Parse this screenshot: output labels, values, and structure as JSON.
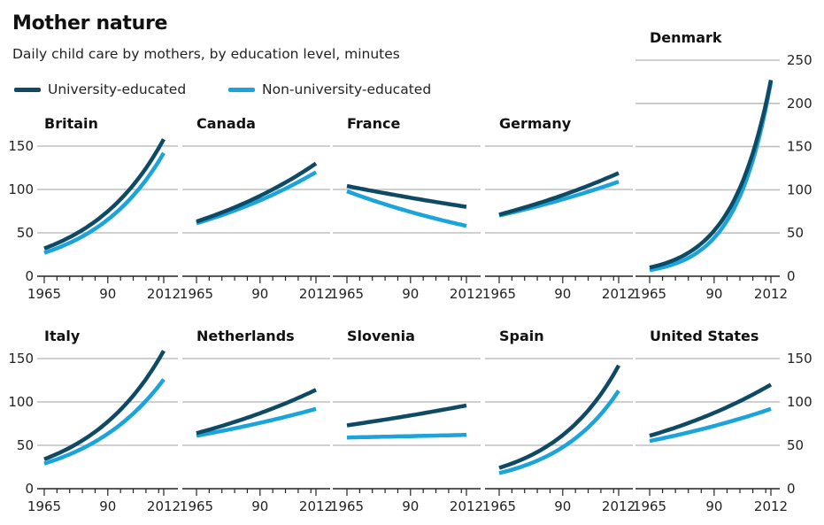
{
  "title": "Mother nature",
  "subtitle": "Daily child care by mothers, by education level, minutes",
  "colors": {
    "university": "#0e4a64",
    "non_university": "#1aa4d9",
    "grid": "#c0c0c0",
    "axis": "#222222"
  },
  "legend": [
    {
      "label": "University-educated",
      "color": "#0e4a64"
    },
    {
      "label": "Non-university-educated",
      "color": "#1aa4d9"
    }
  ],
  "chart_data": [
    {
      "type": "line",
      "title": "Britain",
      "x": [
        1965,
        2012
      ],
      "xticks": [
        "1965",
        "90",
        "2012"
      ],
      "ylim": [
        0,
        150
      ],
      "yticks": [
        "0",
        "50",
        "100",
        "150"
      ],
      "series": [
        {
          "name": "University-educated",
          "start": 32,
          "end": 158
        },
        {
          "name": "Non-university-educated",
          "start": 27,
          "end": 142
        }
      ]
    },
    {
      "type": "line",
      "title": "Canada",
      "x": [
        1965,
        2012
      ],
      "xticks": [
        "1965",
        "90",
        "2012"
      ],
      "ylim": [
        0,
        150
      ],
      "series": [
        {
          "name": "University-educated",
          "start": 63,
          "end": 130
        },
        {
          "name": "Non-university-educated",
          "start": 61,
          "end": 120
        }
      ]
    },
    {
      "type": "line",
      "title": "France",
      "x": [
        1965,
        2012
      ],
      "xticks": [
        "1965",
        "90",
        "2012"
      ],
      "ylim": [
        0,
        150
      ],
      "series": [
        {
          "name": "University-educated",
          "start": 104,
          "end": 80
        },
        {
          "name": "Non-university-educated",
          "start": 98,
          "end": 58
        }
      ]
    },
    {
      "type": "line",
      "title": "Germany",
      "x": [
        1965,
        2012
      ],
      "xticks": [
        "1965",
        "90",
        "2012"
      ],
      "ylim": [
        0,
        150
      ],
      "series": [
        {
          "name": "University-educated",
          "start": 71,
          "end": 119
        },
        {
          "name": "Non-university-educated",
          "start": 70,
          "end": 109
        }
      ]
    },
    {
      "type": "line",
      "title": "Denmark",
      "x": [
        1965,
        2012
      ],
      "xticks": [
        "1965",
        "90",
        "2012"
      ],
      "ylim": [
        0,
        250
      ],
      "yticks": [
        "0",
        "50",
        "100",
        "150",
        "200",
        "250"
      ],
      "series": [
        {
          "name": "University-educated",
          "start": 10,
          "end": 227
        },
        {
          "name": "Non-university-educated",
          "start": 7,
          "end": 225
        }
      ]
    },
    {
      "type": "line",
      "title": "Italy",
      "x": [
        1965,
        2012
      ],
      "xticks": [
        "1965",
        "90",
        "2012"
      ],
      "ylim": [
        0,
        150
      ],
      "yticks": [
        "0",
        "50",
        "100",
        "150"
      ],
      "series": [
        {
          "name": "University-educated",
          "start": 34,
          "end": 159
        },
        {
          "name": "Non-university-educated",
          "start": 29,
          "end": 126
        }
      ]
    },
    {
      "type": "line",
      "title": "Netherlands",
      "x": [
        1965,
        2012
      ],
      "xticks": [
        "1965",
        "90",
        "2012"
      ],
      "ylim": [
        0,
        150
      ],
      "series": [
        {
          "name": "University-educated",
          "start": 64,
          "end": 114
        },
        {
          "name": "Non-university-educated",
          "start": 61,
          "end": 92
        }
      ]
    },
    {
      "type": "line",
      "title": "Slovenia",
      "x": [
        1965,
        2012
      ],
      "xticks": [
        "1965",
        "90",
        "2012"
      ],
      "ylim": [
        0,
        150
      ],
      "series": [
        {
          "name": "University-educated",
          "start": 73,
          "end": 96
        },
        {
          "name": "Non-university-educated",
          "start": 59,
          "end": 62
        }
      ]
    },
    {
      "type": "line",
      "title": "Spain",
      "x": [
        1965,
        2012
      ],
      "xticks": [
        "1965",
        "90",
        "2012"
      ],
      "ylim": [
        0,
        150
      ],
      "series": [
        {
          "name": "University-educated",
          "start": 24,
          "end": 142
        },
        {
          "name": "Non-university-educated",
          "start": 18,
          "end": 113
        }
      ]
    },
    {
      "type": "line",
      "title": "United States",
      "x": [
        1965,
        2012
      ],
      "xticks": [
        "1965",
        "90",
        "2012"
      ],
      "ylim": [
        0,
        150
      ],
      "yticks": [
        "0",
        "50",
        "100",
        "150"
      ],
      "series": [
        {
          "name": "University-educated",
          "start": 61,
          "end": 120
        },
        {
          "name": "Non-university-educated",
          "start": 55,
          "end": 92
        }
      ]
    }
  ]
}
